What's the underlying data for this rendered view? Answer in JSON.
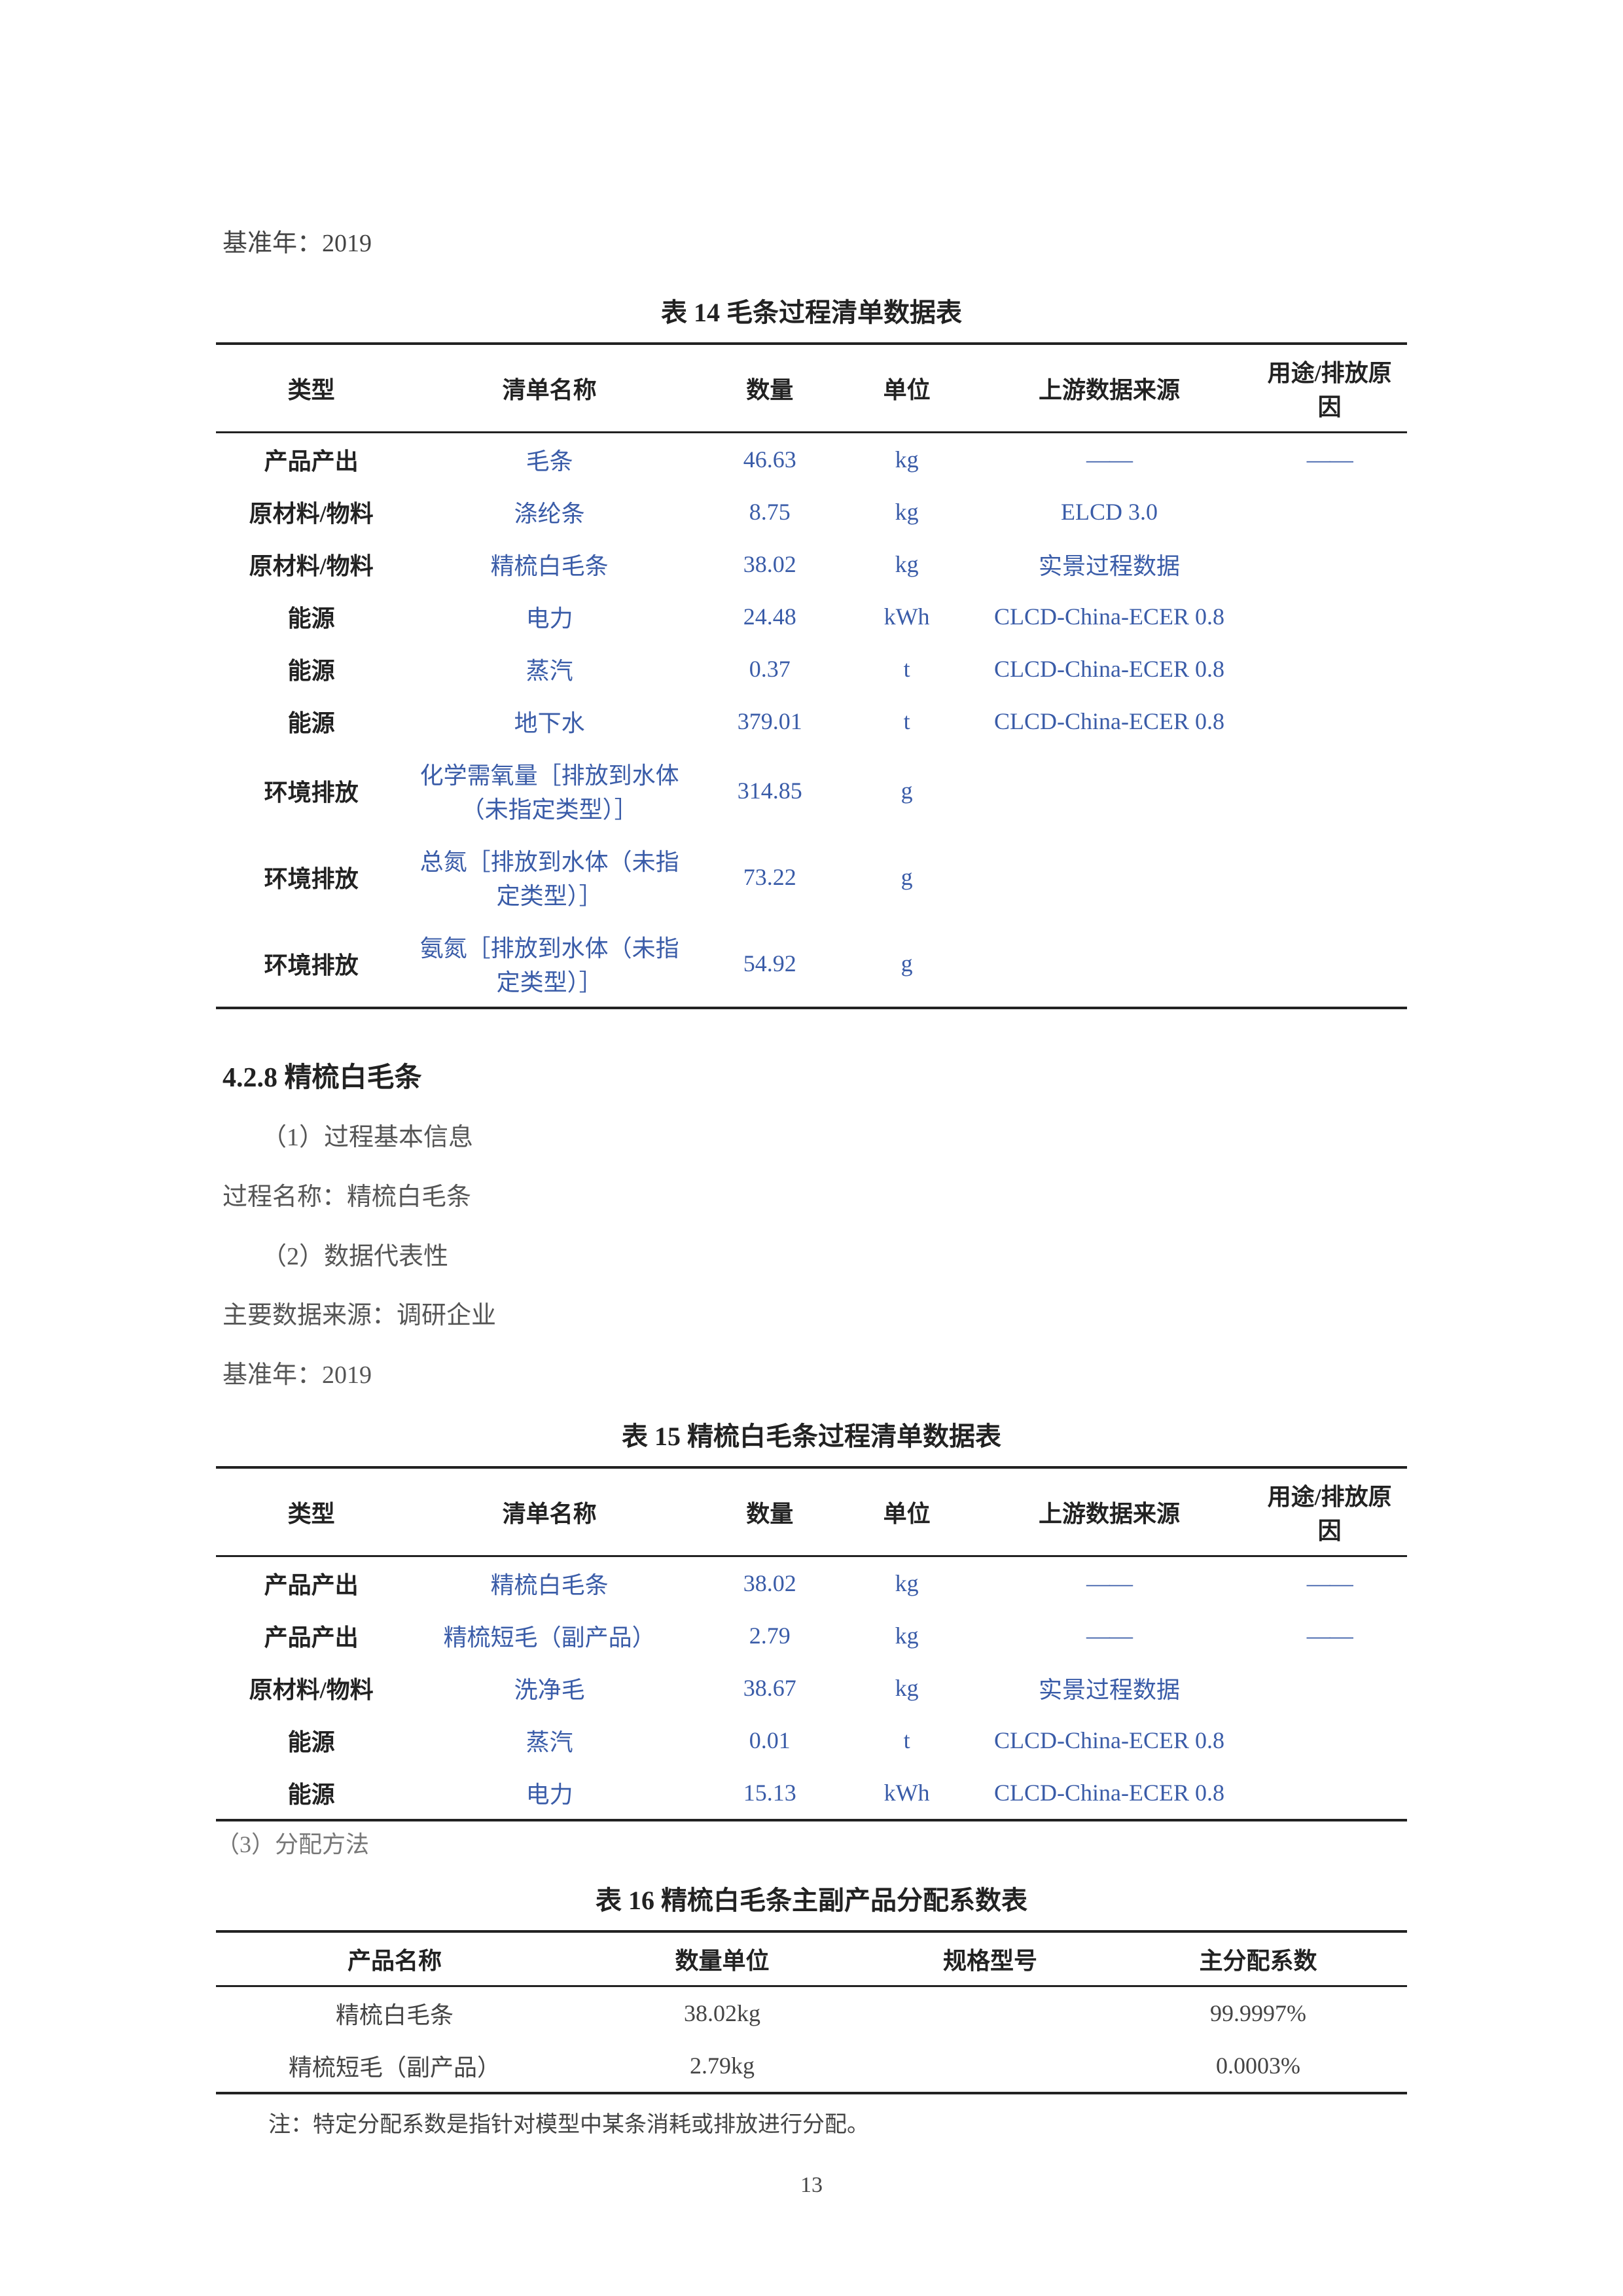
{
  "intro_baseyear": "基准年：2019",
  "table14": {
    "caption": "表 14  毛条过程清单数据表",
    "headers": [
      "类型",
      "清单名称",
      "数量",
      "单位",
      "上游数据来源",
      "用途/排放原因"
    ],
    "rows": [
      {
        "type": "产品产出",
        "name": "毛条",
        "qty": "46.63",
        "unit": "kg",
        "src": "——",
        "reason": "——"
      },
      {
        "type": "原材料/物料",
        "name": "涤纶条",
        "qty": "8.75",
        "unit": "kg",
        "src": "ELCD 3.0",
        "reason": ""
      },
      {
        "type": "原材料/物料",
        "name": "精梳白毛条",
        "qty": "38.02",
        "unit": "kg",
        "src": "实景过程数据",
        "reason": ""
      },
      {
        "type": "能源",
        "name": "电力",
        "qty": "24.48",
        "unit": "kWh",
        "src": "CLCD-China-ECER 0.8",
        "reason": ""
      },
      {
        "type": "能源",
        "name": "蒸汽",
        "qty": "0.37",
        "unit": "t",
        "src": "CLCD-China-ECER 0.8",
        "reason": ""
      },
      {
        "type": "能源",
        "name": "地下水",
        "qty": "379.01",
        "unit": "t",
        "src": "CLCD-China-ECER 0.8",
        "reason": ""
      },
      {
        "type": "环境排放",
        "name": "化学需氧量［排放到水体（未指定类型）］",
        "qty": "314.85",
        "unit": "g",
        "src": "",
        "reason": ""
      },
      {
        "type": "环境排放",
        "name": "总氮［排放到水体（未指定类型）］",
        "qty": "73.22",
        "unit": "g",
        "src": "",
        "reason": ""
      },
      {
        "type": "环境排放",
        "name": "氨氮［排放到水体（未指定类型）］",
        "qty": "54.92",
        "unit": "g",
        "src": "",
        "reason": ""
      }
    ]
  },
  "section428": {
    "heading": "4.2.8 精梳白毛条",
    "l1": "（1）过程基本信息",
    "l2": "过程名称：精梳白毛条",
    "l3": "（2）数据代表性",
    "l4": "主要数据来源：调研企业",
    "l5": "基准年：2019"
  },
  "table15": {
    "caption": "表 15  精梳白毛条过程清单数据表",
    "headers": [
      "类型",
      "清单名称",
      "数量",
      "单位",
      "上游数据来源",
      "用途/排放原因"
    ],
    "rows": [
      {
        "type": "产品产出",
        "name": "精梳白毛条",
        "qty": "38.02",
        "unit": "kg",
        "src": "——",
        "reason": "——"
      },
      {
        "type": "产品产出",
        "name": "精梳短毛（副产品）",
        "qty": "2.79",
        "unit": "kg",
        "src": "——",
        "reason": "——"
      },
      {
        "type": "原材料/物料",
        "name": "洗净毛",
        "qty": "38.67",
        "unit": "kg",
        "src": "实景过程数据",
        "reason": ""
      },
      {
        "type": "能源",
        "name": "蒸汽",
        "qty": "0.01",
        "unit": "t",
        "src": "CLCD-China-ECER 0.8",
        "reason": ""
      },
      {
        "type": "能源",
        "name": "电力",
        "qty": "15.13",
        "unit": "kWh",
        "src": "CLCD-China-ECER 0.8",
        "reason": ""
      }
    ]
  },
  "sub3": "（3）分配方法",
  "table16": {
    "caption": "表 16  精梳白毛条主副产品分配系数表",
    "headers": [
      "产品名称",
      "数量单位",
      "规格型号",
      "主分配系数"
    ],
    "rows": [
      {
        "name": "精梳白毛条",
        "qtyunit": "38.02kg",
        "spec": "",
        "coef": "99.9997%"
      },
      {
        "name": "精梳短毛（副产品）",
        "qtyunit": "2.79kg",
        "spec": "",
        "coef": "0.0003%"
      }
    ]
  },
  "note": "注：特定分配系数是指针对模型中某条消耗或排放进行分配。",
  "page_number": "13"
}
